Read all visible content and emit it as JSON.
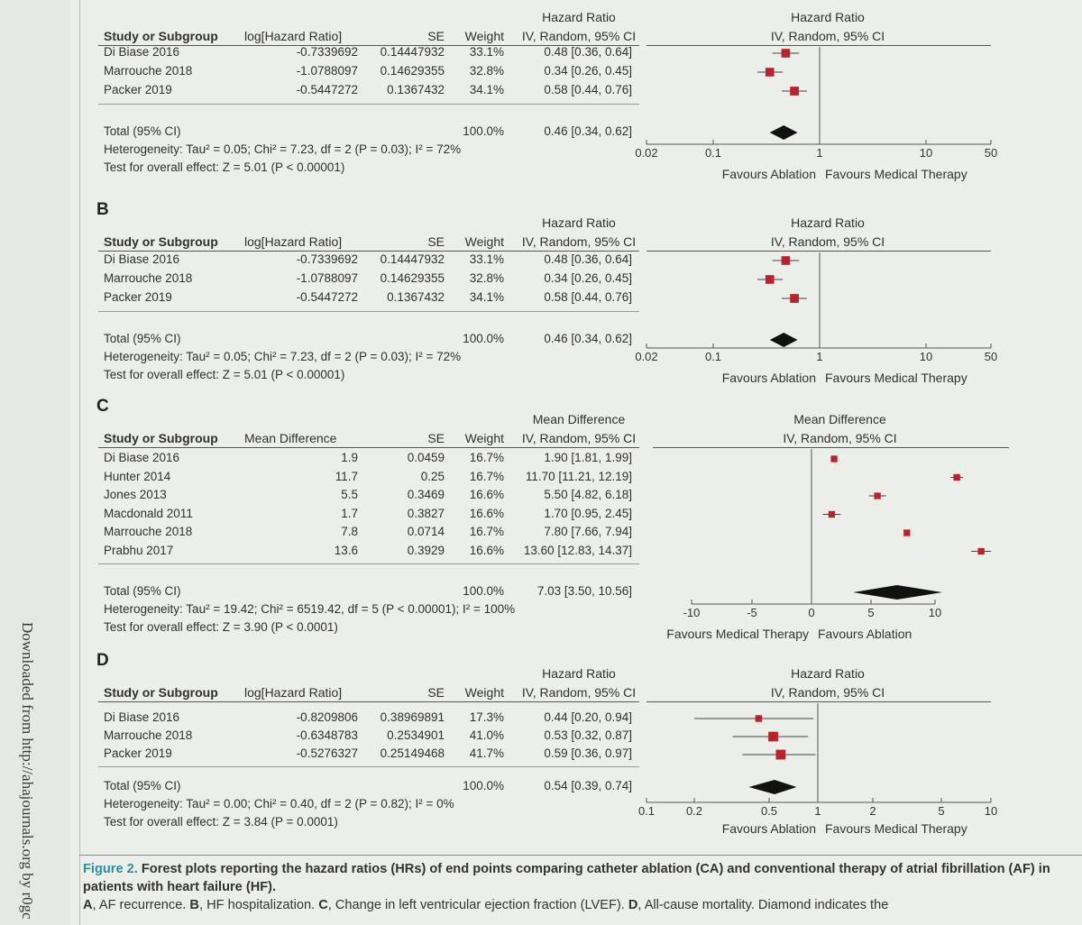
{
  "side_text": "Downloaded from http://ahajournals.org by r0gc",
  "panels": [
    {
      "label": "",
      "col_headers": {
        "study": "Study or Subgroup",
        "effect": "log[Hazard Ratio]",
        "se": "SE",
        "weight": "Weight",
        "ci_top": "Hazard Ratio",
        "ci_bottom": "IV, Random, 95% CI",
        "plot_top": "Hazard Ratio",
        "plot_bottom": "IV, Random, 95% CI"
      },
      "rows": [
        {
          "study": "Di Biase 2016",
          "effect": "-0.7339692",
          "se": "0.14447932",
          "weight": "33.1%",
          "ci": "0.48 [0.36, 0.64]"
        },
        {
          "study": "Marrouche 2018",
          "effect": "-1.0788097",
          "se": "0.14629355",
          "weight": "32.8%",
          "ci": "0.34 [0.26, 0.45]"
        },
        {
          "study": "Packer 2019",
          "effect": "-0.5447272",
          "se": "0.1367432",
          "weight": "34.1%",
          "ci": "0.58 [0.44, 0.76]"
        }
      ],
      "total": {
        "label": "Total (95% CI)",
        "weight": "100.0%",
        "ci": "0.46 [0.34, 0.62]"
      },
      "heterogeneity": "Heterogeneity: Tau² = 0.05; Chi² = 7.23, df = 2 (P = 0.03); I² = 72%",
      "overall": "Test for overall effect: Z = 5.01 (P < 0.00001)",
      "axis_ticks": [
        "0.02",
        "0.1",
        "1",
        "10",
        "50"
      ],
      "favours_left": "Favours Ablation",
      "favours_right": "Favours Medical Therapy"
    },
    {
      "label": "B",
      "col_headers": {
        "study": "Study or Subgroup",
        "effect": "log[Hazard Ratio]",
        "se": "SE",
        "weight": "Weight",
        "ci_top": "Hazard Ratio",
        "ci_bottom": "IV, Random, 95% CI",
        "plot_top": "Hazard Ratio",
        "plot_bottom": "IV, Random, 95% CI"
      },
      "rows": [
        {
          "study": "Di Biase 2016",
          "effect": "-0.7339692",
          "se": "0.14447932",
          "weight": "33.1%",
          "ci": "0.48 [0.36, 0.64]"
        },
        {
          "study": "Marrouche 2018",
          "effect": "-1.0788097",
          "se": "0.14629355",
          "weight": "32.8%",
          "ci": "0.34 [0.26, 0.45]"
        },
        {
          "study": "Packer 2019",
          "effect": "-0.5447272",
          "se": "0.1367432",
          "weight": "34.1%",
          "ci": "0.58 [0.44, 0.76]"
        }
      ],
      "total": {
        "label": "Total (95% CI)",
        "weight": "100.0%",
        "ci": "0.46 [0.34, 0.62]"
      },
      "heterogeneity": "Heterogeneity: Tau² = 0.05; Chi² = 7.23, df = 2 (P = 0.03); I² = 72%",
      "overall": "Test for overall effect: Z = 5.01 (P < 0.00001)",
      "axis_ticks": [
        "0.02",
        "0.1",
        "1",
        "10",
        "50"
      ],
      "favours_left": "Favours Ablation",
      "favours_right": "Favours Medical Therapy"
    },
    {
      "label": "C",
      "col_headers": {
        "study": "Study or Subgroup",
        "effect": "Mean Difference",
        "se": "SE",
        "weight": "Weight",
        "ci_top": "Mean Difference",
        "ci_bottom": "IV, Random, 95% CI",
        "plot_top": "Mean Difference",
        "plot_bottom": "IV, Random, 95% CI"
      },
      "rows": [
        {
          "study": "Di Biase 2016",
          "effect": "1.9",
          "se": "0.0459",
          "weight": "16.7%",
          "ci": "1.90 [1.81, 1.99]"
        },
        {
          "study": "Hunter 2014",
          "effect": "11.7",
          "se": "0.25",
          "weight": "16.7%",
          "ci": "11.70 [11.21, 12.19]"
        },
        {
          "study": "Jones 2013",
          "effect": "5.5",
          "se": "0.3469",
          "weight": "16.6%",
          "ci": "5.50 [4.82, 6.18]"
        },
        {
          "study": "Macdonald 2011",
          "effect": "1.7",
          "se": "0.3827",
          "weight": "16.6%",
          "ci": "1.70 [0.95, 2.45]"
        },
        {
          "study": "Marrouche 2018",
          "effect": "7.8",
          "se": "0.0714",
          "weight": "16.7%",
          "ci": "7.80 [7.66, 7.94]"
        },
        {
          "study": "Prabhu 2017",
          "effect": "13.6",
          "se": "0.3929",
          "weight": "16.6%",
          "ci": "13.60 [12.83, 14.37]"
        }
      ],
      "total": {
        "label": "Total (95% CI)",
        "weight": "100.0%",
        "ci": "7.03 [3.50, 10.56]"
      },
      "heterogeneity": "Heterogeneity: Tau² = 19.42; Chi² = 6519.42, df = 5 (P < 0.00001); I² = 100%",
      "overall": "Test for overall effect: Z = 3.90 (P < 0.0001)",
      "axis_ticks": [
        "-10",
        "-5",
        "0",
        "5",
        "10"
      ],
      "favours_left": "Favours Medical Therapy",
      "favours_right": "Favours Ablation"
    },
    {
      "label": "D",
      "col_headers": {
        "study": "Study or Subgroup",
        "effect": "log[Hazard Ratio]",
        "se": "SE",
        "weight": "Weight",
        "ci_top": "Hazard Ratio",
        "ci_bottom": "IV, Random, 95% CI",
        "plot_top": "Hazard Ratio",
        "plot_bottom": "IV, Random, 95% CI"
      },
      "rows": [
        {
          "study": "Di Biase 2016",
          "effect": "-0.8209806",
          "se": "0.38969891",
          "weight": "17.3%",
          "ci": "0.44 [0.20, 0.94]"
        },
        {
          "study": "Marrouche 2018",
          "effect": "-0.6348783",
          "se": "0.2534901",
          "weight": "41.0%",
          "ci": "0.53 [0.32, 0.87]"
        },
        {
          "study": "Packer 2019",
          "effect": "-0.5276327",
          "se": "0.25149468",
          "weight": "41.7%",
          "ci": "0.59 [0.36, 0.97]"
        }
      ],
      "total": {
        "label": "Total (95% CI)",
        "weight": "100.0%",
        "ci": "0.54 [0.39, 0.74]"
      },
      "heterogeneity": "Heterogeneity: Tau² = 0.00; Chi² = 0.40, df = 2 (P = 0.82); I² = 0%",
      "overall": "Test for overall effect: Z = 3.84 (P = 0.0001)",
      "axis_ticks": [
        "0.1",
        "0.2",
        "0.5",
        "1",
        "2",
        "5",
        "10"
      ],
      "favours_left": "Favours Ablation",
      "favours_right": "Favours Medical Therapy"
    }
  ],
  "caption": {
    "fig_num": "Figure 2.",
    "title": "Forest plots reporting the hazard ratios (HRs) of end points comparing catheter ablation (CA) and conventional therapy of atrial fibrillation (AF) in patients with heart failure (HF).",
    "body": [
      {
        "label": "A",
        "text": ", AF recurrence. "
      },
      {
        "label": "B",
        "text": ", HF hospitalization. "
      },
      {
        "label": "C",
        "text": ", Change in left ventricular ejection fraction (LVEF). "
      },
      {
        "label": "D",
        "text": ", All-cause mortality. Diamond indicates the"
      }
    ]
  },
  "colors": {
    "square": "#b8242b",
    "diamond": "#111111",
    "axis": "#555555",
    "caption_accent": "#2a8fa3"
  },
  "chart_data": [
    {
      "type": "forest",
      "scale": "log",
      "xlim": [
        0.02,
        50
      ],
      "null_value": 1,
      "studies": [
        {
          "name": "Di Biase 2016",
          "estimate": 0.48,
          "ci": [
            0.36,
            0.64
          ],
          "weight": 33.1
        },
        {
          "name": "Marrouche 2018",
          "estimate": 0.34,
          "ci": [
            0.26,
            0.45
          ],
          "weight": 32.8
        },
        {
          "name": "Packer 2019",
          "estimate": 0.58,
          "ci": [
            0.44,
            0.76
          ],
          "weight": 34.1
        }
      ],
      "pooled": {
        "estimate": 0.46,
        "ci": [
          0.34,
          0.62
        ]
      }
    },
    {
      "type": "forest",
      "scale": "log",
      "xlim": [
        0.02,
        50
      ],
      "null_value": 1,
      "studies": [
        {
          "name": "Di Biase 2016",
          "estimate": 0.48,
          "ci": [
            0.36,
            0.64
          ],
          "weight": 33.1
        },
        {
          "name": "Marrouche 2018",
          "estimate": 0.34,
          "ci": [
            0.26,
            0.45
          ],
          "weight": 32.8
        },
        {
          "name": "Packer 2019",
          "estimate": 0.58,
          "ci": [
            0.44,
            0.76
          ],
          "weight": 34.1
        }
      ],
      "pooled": {
        "estimate": 0.46,
        "ci": [
          0.34,
          0.62
        ]
      }
    },
    {
      "type": "forest",
      "scale": "linear",
      "xlim": [
        -12,
        15
      ],
      "null_value": 0,
      "studies": [
        {
          "name": "Di Biase 2016",
          "estimate": 1.9,
          "ci": [
            1.81,
            1.99
          ],
          "weight": 16.7
        },
        {
          "name": "Hunter 2014",
          "estimate": 11.7,
          "ci": [
            11.21,
            12.19
          ],
          "weight": 16.7
        },
        {
          "name": "Jones 2013",
          "estimate": 5.5,
          "ci": [
            4.82,
            6.18
          ],
          "weight": 16.6
        },
        {
          "name": "Macdonald 2011",
          "estimate": 1.7,
          "ci": [
            0.95,
            2.45
          ],
          "weight": 16.6
        },
        {
          "name": "Marrouche 2018",
          "estimate": 7.8,
          "ci": [
            7.66,
            7.94
          ],
          "weight": 16.7
        },
        {
          "name": "Prabhu 2017",
          "estimate": 13.6,
          "ci": [
            12.83,
            14.37
          ],
          "weight": 16.6
        }
      ],
      "pooled": {
        "estimate": 7.03,
        "ci": [
          3.5,
          10.56
        ]
      }
    },
    {
      "type": "forest",
      "scale": "log",
      "xlim": [
        0.1,
        10
      ],
      "null_value": 1,
      "studies": [
        {
          "name": "Di Biase 2016",
          "estimate": 0.44,
          "ci": [
            0.2,
            0.94
          ],
          "weight": 17.3
        },
        {
          "name": "Marrouche 2018",
          "estimate": 0.53,
          "ci": [
            0.32,
            0.87
          ],
          "weight": 41.0
        },
        {
          "name": "Packer 2019",
          "estimate": 0.59,
          "ci": [
            0.36,
            0.97
          ],
          "weight": 41.7
        }
      ],
      "pooled": {
        "estimate": 0.54,
        "ci": [
          0.39,
          0.74
        ]
      }
    }
  ]
}
